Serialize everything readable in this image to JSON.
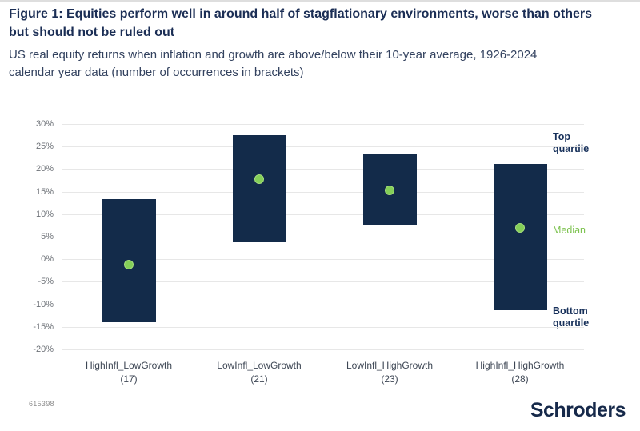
{
  "header": {
    "title_lines": [
      "Figure 1: Equities perform well in around half of stagflationary environments, worse than others",
      "but should not be ruled out"
    ],
    "subtitle_lines": [
      "US real equity returns when inflation and growth are above/below their 10-year average, 1926-2024",
      "calendar year data (number of occurrences in brackets)"
    ]
  },
  "chart_data": {
    "type": "bar",
    "subtype": "floating-quartile-range-bars-with-median-dots",
    "categories": [
      "HighInfl_LowGrowth",
      "LowInfl_LowGrowth",
      "LowInfl_HighGrowth",
      "HighInfl_HighGrowth"
    ],
    "occurrences": [
      17,
      21,
      23,
      28
    ],
    "series": [
      {
        "name": "Top quartile",
        "values": [
          13.3,
          27.6,
          23.2,
          21.1
        ]
      },
      {
        "name": "Median",
        "values": [
          -1.2,
          17.7,
          15.3,
          7.0
        ]
      },
      {
        "name": "Bottom quartile",
        "values": [
          -14.0,
          3.8,
          7.4,
          -11.4
        ]
      }
    ],
    "xlabel": "",
    "ylabel": "",
    "ylim": [
      -20,
      30
    ],
    "ytick_step": 5,
    "ytick_suffix": "%",
    "grid": true,
    "legend_position": "right-annotations",
    "annotations": {
      "top": "Top quartile",
      "median": "Median",
      "bottom": "Bottom quartile"
    },
    "colors": {
      "bar": "#132b4a",
      "median_dot": "#84cf58",
      "median_dot_edge": "#a5de7c",
      "median_label": "#7cc24e",
      "title_navy": "#17305a",
      "gridline": "#e7e7e7"
    }
  },
  "footer": {
    "reference_number": "615398",
    "brand": "Schroders"
  }
}
